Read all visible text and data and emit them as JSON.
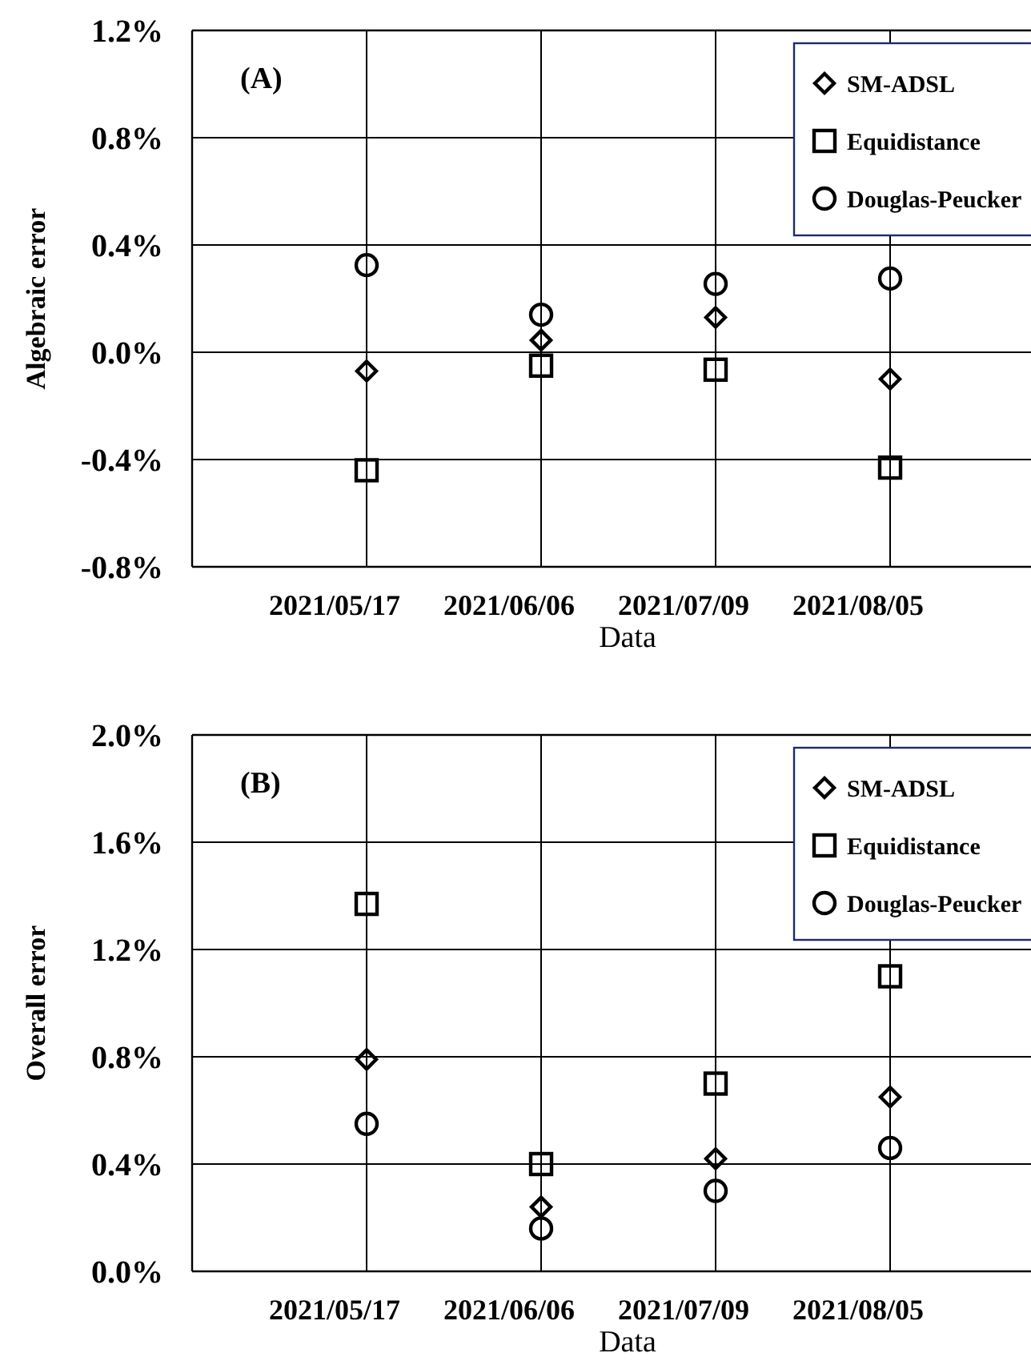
{
  "chart_data": [
    {
      "type": "scatter",
      "ylabel": "Algebraic error",
      "xlabel": "Data",
      "annotations": [
        "(A)"
      ],
      "categories": [
        "2021/05/17",
        "2021/06/06",
        "2021/07/09",
        "2021/08/05"
      ],
      "series": [
        {
          "name": "SM-ADSL",
          "color": "#000000",
          "marker": "diamond",
          "values": [
            -0.07,
            0.045,
            0.13,
            -0.1
          ]
        },
        {
          "name": "Equidistance",
          "color": "#000000",
          "marker": "square",
          "values": [
            -0.44,
            -0.05,
            -0.065,
            -0.43
          ]
        },
        {
          "name": "Douglas-Peucker",
          "color": "#000000",
          "marker": "circle",
          "values": [
            0.325,
            0.14,
            0.255,
            0.275
          ]
        }
      ],
      "ylim": [
        -0.8,
        1.2
      ],
      "yticks": [
        {
          "value": -0.8,
          "label": "-0.8%"
        },
        {
          "value": -0.4,
          "label": "-0.4%"
        },
        {
          "value": 0,
          "label": "0.0%"
        },
        {
          "value": 0.4,
          "label": "0.4%"
        },
        {
          "value": 0.8,
          "label": "0.8%"
        },
        {
          "value": 1.2,
          "label": "1.2%"
        }
      ],
      "grid": true,
      "legend": "top right"
    },
    {
      "type": "scatter",
      "ylabel": "Overall error",
      "xlabel": "Data",
      "annotations": [
        "(B)"
      ],
      "categories": [
        "2021/05/17",
        "2021/06/06",
        "2021/07/09",
        "2021/08/05"
      ],
      "series": [
        {
          "name": "SM-ADSL",
          "color": "#000000",
          "marker": "diamond",
          "values": [
            0.79,
            0.24,
            0.42,
            0.65
          ]
        },
        {
          "name": "Equidistance",
          "color": "#000000",
          "marker": "square",
          "values": [
            1.37,
            0.4,
            0.7,
            1.1
          ]
        },
        {
          "name": "Douglas-Peucker",
          "color": "#000000",
          "marker": "circle",
          "values": [
            0.55,
            0.16,
            0.3,
            0.46
          ]
        }
      ],
      "ylim": [
        0,
        2.0
      ],
      "yticks": [
        {
          "value": 0,
          "label": "0.0%"
        },
        {
          "value": 0.4,
          "label": "0.4%"
        },
        {
          "value": 0.8,
          "label": "0.8%"
        },
        {
          "value": 1.2,
          "label": "1.2%"
        },
        {
          "value": 1.6,
          "label": "1.6%"
        },
        {
          "value": 2.0,
          "label": "2.0%"
        }
      ],
      "grid": true,
      "legend": "top right"
    }
  ]
}
